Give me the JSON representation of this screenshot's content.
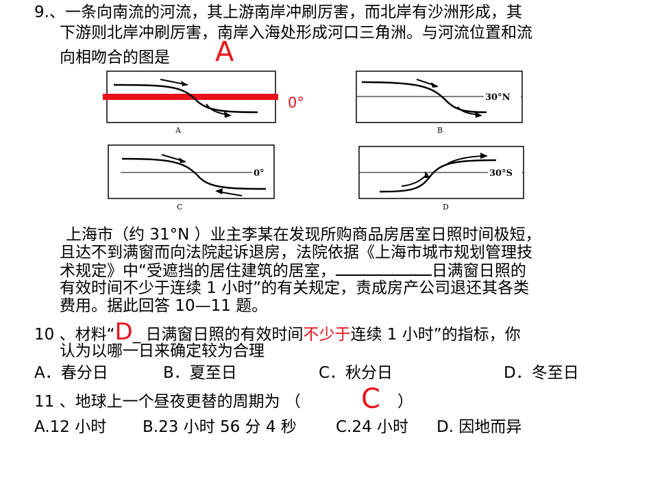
{
  "q9": {
    "line1": "9.、一条向南流的河流，其上游南岸冲刷厉害，而北岸有沙洲形成，其",
    "line2": "下游则北岸冲刷厉害，南岸入海处形成河口三角洲。与河流位置和流",
    "line3": "向相吻合的图是",
    "answer": "A",
    "equator_label": "0°"
  },
  "figures": {
    "a": {
      "letter": "A",
      "lat_label": ""
    },
    "b": {
      "letter": "B",
      "lat_label": "30°N"
    },
    "c": {
      "letter": "C",
      "lat_label": "0°"
    },
    "d": {
      "letter": "D",
      "lat_label": "30°S"
    }
  },
  "passage": {
    "line1": "上海市（约 31°N ）业主李某在发现所购商品房居室日照时间极短，",
    "line2": "且达不到满窗而向法院起诉退房，法院依据《上海市城市规划管理技",
    "line3a": "术规定》中“受遮挡的居住建筑的居室，",
    "line3b": "日满窗日照的",
    "line4": "有效时间不少于连续 1 小时”的有关规定，责成房产公司退还其各类",
    "line5": "费用。据此回答 10—11 题。"
  },
  "q10": {
    "prefix": "10 、材料“",
    "answer": "D",
    "underscore": "_",
    "mid": " 日满窗日照的有效时间",
    "highlight": "不少于",
    "suffix": "连续 1 小时”的指标，你",
    "line2": "认为以哪一日来确定较为合理",
    "options": [
      "A．春分日",
      "B．夏至日",
      "C．秋分日",
      "D．冬至日"
    ]
  },
  "q11": {
    "prefix": "11 、地球上一个昼夜更替的周期为  （",
    "answer": "C",
    "suffix": "）",
    "options": [
      "A.12 小时",
      "B.23 小时 56 分 4 秒",
      "C.24 小时",
      "D. 因地而异"
    ]
  }
}
